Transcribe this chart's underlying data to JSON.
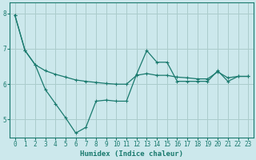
{
  "xlabel": "Humidex (Indice chaleur)",
  "background_color": "#cce8ec",
  "grid_color": "#aacccc",
  "line_color": "#1a7a6e",
  "xlim": [
    -0.5,
    23.5
  ],
  "ylim": [
    4.5,
    8.3
  ],
  "yticks": [
    5,
    6,
    7,
    8
  ],
  "xticks": [
    0,
    1,
    2,
    3,
    4,
    5,
    6,
    7,
    8,
    9,
    10,
    11,
    12,
    13,
    14,
    15,
    16,
    17,
    18,
    19,
    20,
    21,
    22,
    23
  ],
  "line1_x": [
    0,
    1,
    2,
    3,
    4,
    5,
    6,
    7,
    8,
    9,
    10,
    11,
    12,
    13,
    14,
    15,
    16,
    17,
    18,
    19,
    20,
    21,
    22,
    23
  ],
  "line1_y": [
    7.95,
    6.95,
    6.55,
    6.38,
    6.28,
    6.2,
    6.12,
    6.08,
    6.05,
    6.02,
    6.0,
    6.0,
    6.25,
    6.3,
    6.25,
    6.25,
    6.2,
    6.18,
    6.15,
    6.15,
    6.35,
    6.18,
    6.22,
    6.22
  ],
  "line2_x": [
    0,
    1,
    2,
    3,
    4,
    5,
    6,
    7,
    8,
    9,
    10,
    11,
    12,
    13,
    14,
    15,
    16,
    17,
    18,
    19,
    20,
    21,
    22,
    23
  ],
  "line2_y": [
    7.95,
    6.95,
    6.55,
    5.85,
    5.45,
    5.05,
    4.62,
    4.78,
    5.52,
    5.55,
    5.52,
    5.52,
    6.28,
    6.95,
    6.62,
    6.62,
    6.08,
    6.08,
    6.08,
    6.08,
    6.38,
    6.08,
    6.22,
    6.22
  ]
}
